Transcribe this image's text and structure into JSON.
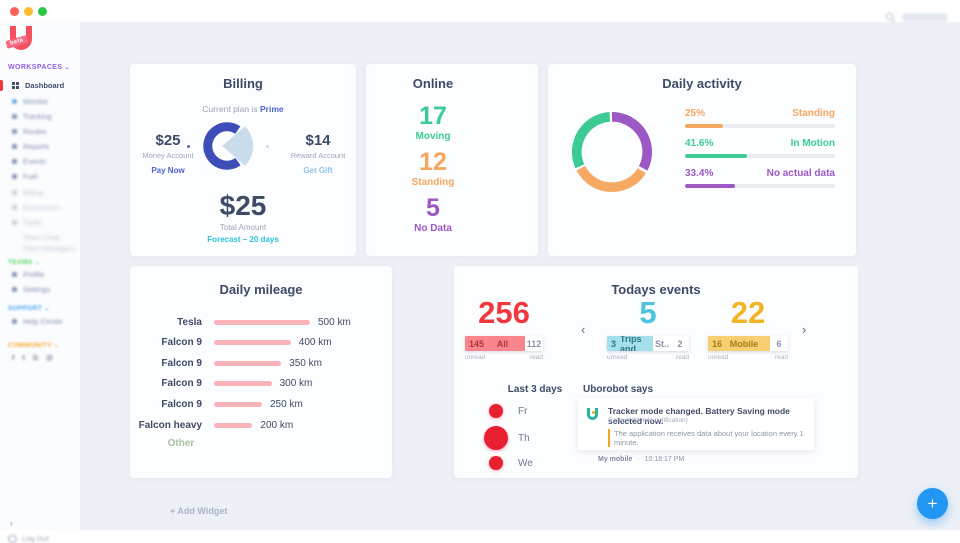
{
  "colors": {
    "background": "#edf0f6",
    "accent_red": "#f2383f",
    "green": "#3dcb94",
    "orange": "#f5a75f",
    "purple": "#9c59c4",
    "cyan": "#4ec3dc",
    "yellow": "#f0b429",
    "billing_blue": "#3d4eb8",
    "billing_wedge": "#c8dcec",
    "mileage_bar_pink": "#f9b2b8",
    "fab_blue": "#2196f3",
    "traffic_close": "#ff5f57",
    "traffic_min": "#febc2e",
    "traffic_zoom": "#28c840"
  },
  "sidebar": {
    "beta_badge": "beta",
    "workspaces_label": "WORKSPACES",
    "active_item": "Dashboard",
    "items": [
      "Monitor",
      "Tracking",
      "Routes",
      "Reports",
      "Events",
      "Fuel"
    ],
    "items_light": [
      "Billing",
      "Ecosystem",
      "Tasks",
      "Team Chat",
      "Fleet Managers .."
    ],
    "section_teams": {
      "label": "TEAMS",
      "items": [
        "Profile",
        "Settings"
      ]
    },
    "section_support": {
      "label": "SUPPORT",
      "items": [
        "Help Center"
      ]
    },
    "section_community": {
      "label": "COMMUNITY"
    },
    "collapse_icon": "‹",
    "logout_label": "Log Out"
  },
  "billing": {
    "title": "Billing",
    "plan_prefix": "Current plan is ",
    "plan_name": "Prime",
    "left": {
      "amount": "$25",
      "label": "Money Account",
      "action": "Pay Now"
    },
    "right": {
      "amount": "$14",
      "label": "Reward Account",
      "action": "Get Gift"
    },
    "total": {
      "amount": "$25",
      "label": "Total Amount",
      "forecast": "Forecast – 20 days"
    }
  },
  "online": {
    "title": "Online",
    "stats": [
      {
        "value": "17",
        "label": "Moving"
      },
      {
        "value": "12",
        "label": "Standing"
      },
      {
        "value": "5",
        "label": "No Data"
      }
    ]
  },
  "daily_activity": {
    "title": "Daily activity",
    "chart": {
      "type": "donut",
      "segments": [
        {
          "label": "Standing",
          "pct": 25,
          "color": "#f5a75f"
        },
        {
          "label": "In Motion",
          "pct": 41.6,
          "color": "#3dcb94"
        },
        {
          "label": "No actual data",
          "pct": 33.4,
          "color": "#9c59c4"
        }
      ]
    },
    "legend": [
      {
        "pct_text": "25%",
        "label": "Standing",
        "fill": 25
      },
      {
        "pct_text": "41.6%",
        "label": "In Motion",
        "fill": 41.6
      },
      {
        "pct_text": "33.4%",
        "label": "No actual data",
        "fill": 33.4
      }
    ]
  },
  "mileage": {
    "title": "Daily mileage",
    "rows": [
      {
        "label": "Tesla",
        "value": "500 km",
        "km": 500,
        "pct": 100
      },
      {
        "label": "Falcon 9",
        "value": "400 km",
        "km": 400,
        "pct": 80
      },
      {
        "label": "Falcon 9",
        "value": "350 km",
        "km": 350,
        "pct": 70
      },
      {
        "label": "Falcon 9",
        "value": "300 km",
        "km": 300,
        "pct": 60
      },
      {
        "label": "Falcon 9",
        "value": "250 km",
        "km": 250,
        "pct": 50
      },
      {
        "label": "Falcon heavy",
        "value": "200 km",
        "km": 200,
        "pct": 40
      }
    ],
    "other_label": "Other"
  },
  "events": {
    "title": "Todays events",
    "prev_icon": "‹",
    "next_icon": "›",
    "groups": [
      {
        "total": "256",
        "unread": "145",
        "label": "All",
        "label_rest": "",
        "read": "112",
        "unread_label": "unread",
        "read_label": "read"
      },
      {
        "total": "5",
        "unread": "3",
        "label": "Trips and",
        "label_rest": "St..",
        "read": "2",
        "unread_label": "unread",
        "read_label": "read"
      },
      {
        "total": "22",
        "unread": "16",
        "label": "Mobile",
        "label_rest": "",
        "read": "6",
        "unread_label": "unread",
        "read_label": "read"
      }
    ]
  },
  "last3days": {
    "title": "Last 3 days",
    "days": [
      {
        "label": "Fr",
        "size": 14
      },
      {
        "label": "Th",
        "size": 24
      },
      {
        "label": "We",
        "size": 14
      }
    ]
  },
  "robot": {
    "title": "Uborobot says",
    "message": "Tracker mode changed. Battery Saving mode selected now.",
    "source": "System (Mobile notification)",
    "quote": "The application receives data about your location every 1 minute.",
    "device": "My mobile",
    "separator": "·",
    "time": "10:18:17 PM"
  },
  "footer": {
    "add_widget": "+ Add Widget",
    "fab_icon": "+"
  }
}
